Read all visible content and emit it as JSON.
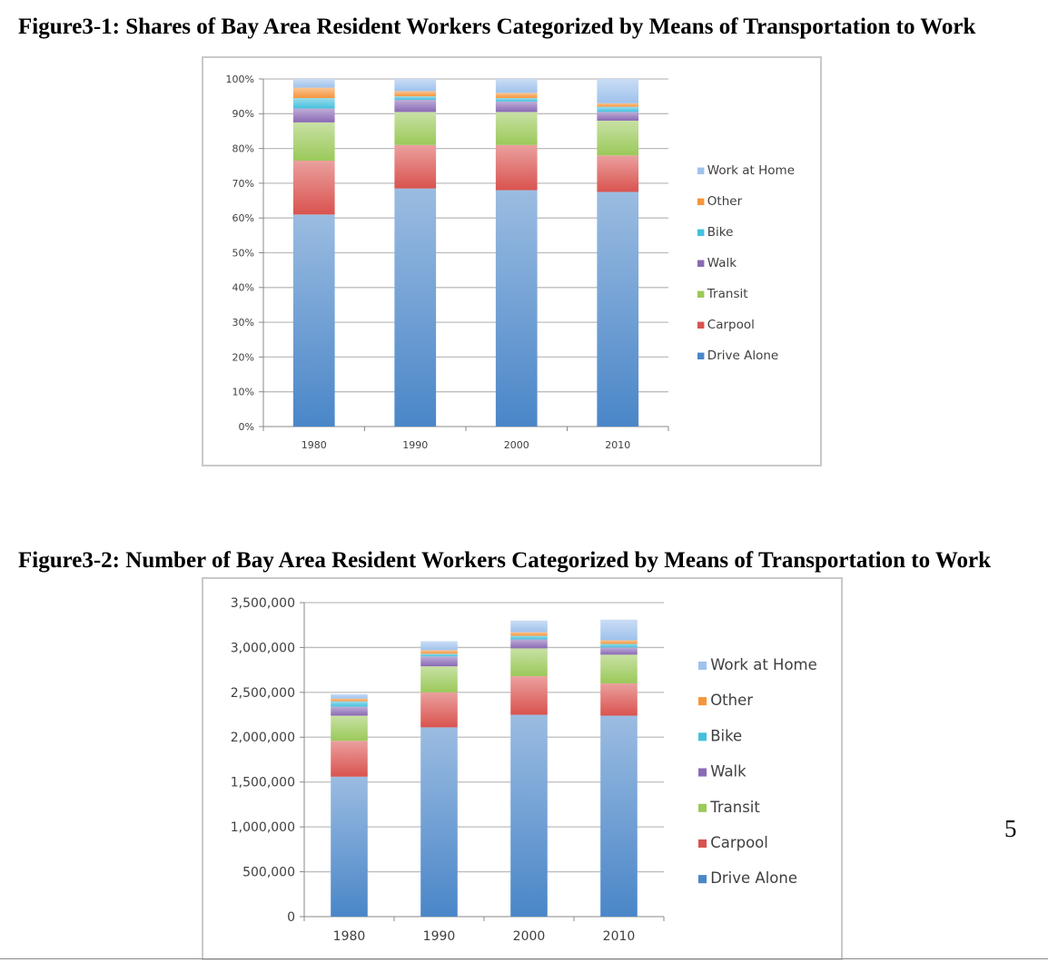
{
  "figures": {
    "fig1_title": "Figure3-1: Shares of Bay Area Resident Workers Categorized by Means of Transportation to Work",
    "fig2_title": "Figure3-2: Number of Bay Area Resident Workers Categorized by Means of Transportation to Work"
  },
  "page_number": "5",
  "colors": {
    "Drive Alone": "#4a86c8",
    "Carpool": "#d9534f",
    "Transit": "#9bc95a",
    "Walk": "#8a6ab5",
    "Bike": "#45c0dc",
    "Other": "#f5963c",
    "Work at Home": "#9fc2ec"
  },
  "chart_data": [
    {
      "type": "bar",
      "stacked": true,
      "categories": [
        "1980",
        "1990",
        "2000",
        "2010"
      ],
      "series": [
        {
          "name": "Drive Alone",
          "values": [
            61,
            68.5,
            68,
            67.5
          ]
        },
        {
          "name": "Carpool",
          "values": [
            15.5,
            12.5,
            13,
            10.5
          ]
        },
        {
          "name": "Transit",
          "values": [
            11,
            9.5,
            9.5,
            10
          ]
        },
        {
          "name": "Walk",
          "values": [
            4,
            3.5,
            3,
            2.5
          ]
        },
        {
          "name": "Bike",
          "values": [
            3,
            1,
            1,
            1.5
          ]
        },
        {
          "name": "Other",
          "values": [
            3,
            1.5,
            1.5,
            1
          ]
        },
        {
          "name": "Work at Home",
          "values": [
            2.5,
            3.5,
            4,
            7
          ]
        }
      ],
      "ylim": [
        0,
        100
      ],
      "yticks": [
        "0%",
        "10%",
        "20%",
        "30%",
        "40%",
        "50%",
        "60%",
        "70%",
        "80%",
        "90%",
        "100%"
      ],
      "legend": [
        "Work at Home",
        "Other",
        "Bike",
        "Walk",
        "Transit",
        "Carpool",
        "Drive Alone"
      ],
      "legend_position": "right",
      "grid": true
    },
    {
      "type": "bar",
      "stacked": true,
      "categories": [
        "1980",
        "1990",
        "2000",
        "2010"
      ],
      "series": [
        {
          "name": "Drive Alone",
          "values": [
            1560000,
            2110000,
            2250000,
            2240000
          ]
        },
        {
          "name": "Carpool",
          "values": [
            400000,
            390000,
            430000,
            360000
          ]
        },
        {
          "name": "Transit",
          "values": [
            280000,
            290000,
            310000,
            320000
          ]
        },
        {
          "name": "Walk",
          "values": [
            100000,
            110000,
            100000,
            80000
          ]
        },
        {
          "name": "Bike",
          "values": [
            60000,
            30000,
            40000,
            40000
          ]
        },
        {
          "name": "Other",
          "values": [
            30000,
            40000,
            40000,
            40000
          ]
        },
        {
          "name": "Work at Home",
          "values": [
            50000,
            100000,
            130000,
            230000
          ]
        }
      ],
      "ylim": [
        0,
        3500000
      ],
      "yticks": [
        "0",
        "500,000",
        "1,000,000",
        "1,500,000",
        "2,000,000",
        "2,500,000",
        "3,000,000",
        "3,500,000"
      ],
      "legend": [
        "Work at Home",
        "Other",
        "Bike",
        "Walk",
        "Transit",
        "Carpool",
        "Drive Alone"
      ],
      "legend_position": "right",
      "grid": true
    }
  ]
}
